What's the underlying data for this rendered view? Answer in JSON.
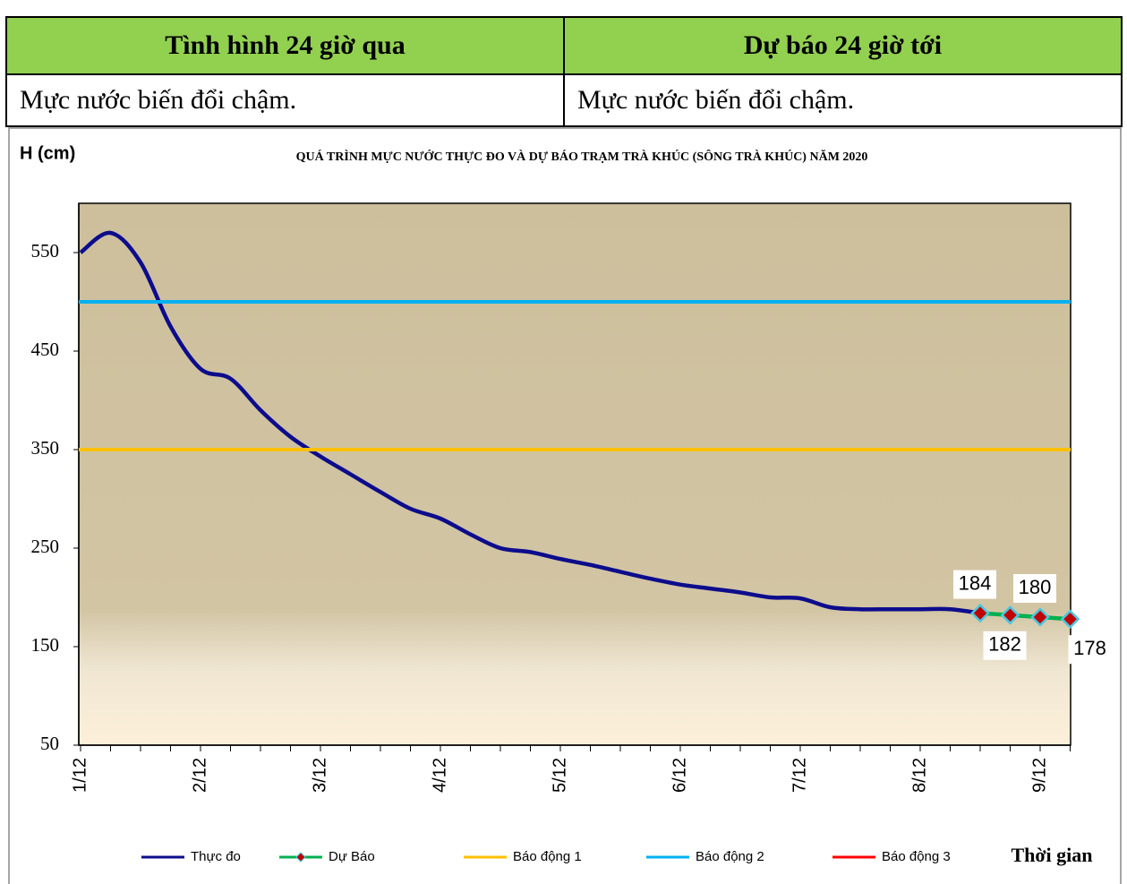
{
  "table": {
    "header": [
      "Tình hình 24 giờ qua",
      "Dự báo 24 giờ tới"
    ],
    "rows": [
      [
        "Mực nước biến đổi chậm.",
        "Mực nước biến đổi chậm."
      ]
    ]
  },
  "chart_data": {
    "type": "line",
    "title": "QUÁ TRÌNH MỰC NƯỚC THỰC ĐO VÀ DỰ BÁO TRẠM TRÀ KHÚC (SÔNG TRÀ KHÚC) NĂM 2020",
    "y_label": "H (cm)",
    "x_label": "Thời gian",
    "categories": [
      "1/12",
      null,
      null,
      null,
      "2/12",
      null,
      null,
      null,
      "3/12",
      null,
      null,
      null,
      "4/12",
      null,
      null,
      null,
      "5/12",
      null,
      null,
      null,
      "6/12",
      null,
      null,
      null,
      "7/12",
      null,
      null,
      null,
      "8/12",
      null,
      null,
      null,
      "9/12",
      null
    ],
    "ylim": [
      50,
      600
    ],
    "yticks": [
      50,
      150,
      250,
      350,
      450,
      550
    ],
    "series": [
      {
        "name": "Thực đo",
        "color": "#0c0c8c",
        "values": [
          550,
          570,
          540,
          475,
          432,
          422,
          390,
          363,
          343,
          325,
          307,
          290,
          280,
          264,
          250,
          246,
          239,
          233,
          226,
          219,
          213,
          209,
          205,
          200,
          199,
          190,
          188,
          188,
          188,
          188,
          184,
          null,
          null,
          null
        ]
      },
      {
        "name": "Dự Báo",
        "color": "#00b050",
        "marker_color": "#c00000",
        "values": [
          null,
          null,
          null,
          null,
          null,
          null,
          null,
          null,
          null,
          null,
          null,
          null,
          null,
          null,
          null,
          null,
          null,
          null,
          null,
          null,
          null,
          null,
          null,
          null,
          null,
          null,
          null,
          null,
          null,
          null,
          184,
          182,
          180,
          178
        ]
      },
      {
        "name": "Báo động 1",
        "color": "#ffc000",
        "level": 350
      },
      {
        "name": "Báo động 2",
        "color": "#00b0f0",
        "level": 500
      },
      {
        "name": "Báo động 3",
        "color": "#ff0000"
      }
    ]
  }
}
